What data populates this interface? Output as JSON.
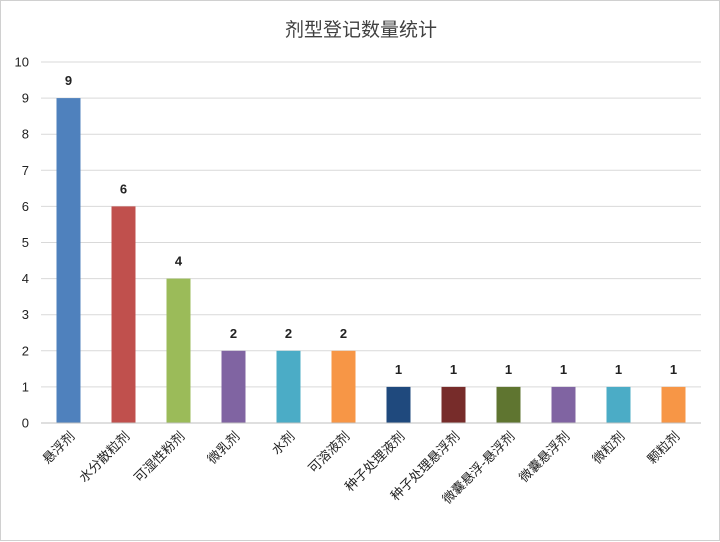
{
  "chart_data": {
    "type": "bar",
    "title": "剂型登记数量统计",
    "xlabel": "",
    "ylabel": "",
    "ylim": [
      0,
      10
    ],
    "yticks": [
      0,
      1,
      2,
      3,
      4,
      5,
      6,
      7,
      8,
      9,
      10
    ],
    "grid": true,
    "legend": "none",
    "categories": [
      "悬浮剂",
      "水分散粒剂",
      "可湿性粉剂",
      "微乳剂",
      "水剂",
      "可溶液剂",
      "种子处理液剂",
      "种子处理悬浮剂",
      "微囊悬浮-悬浮剂",
      "微囊悬浮剂",
      "微粒剂",
      "颗粒剂"
    ],
    "values": [
      9,
      6,
      4,
      2,
      2,
      2,
      1,
      1,
      1,
      1,
      1,
      1
    ],
    "colors": [
      "#4f81bd",
      "#c0504d",
      "#9bbb59",
      "#8064a2",
      "#4bacc6",
      "#f79646",
      "#1f497d",
      "#772c2a",
      "#5f7530",
      "#8064a2",
      "#4bacc6",
      "#f79646"
    ]
  }
}
